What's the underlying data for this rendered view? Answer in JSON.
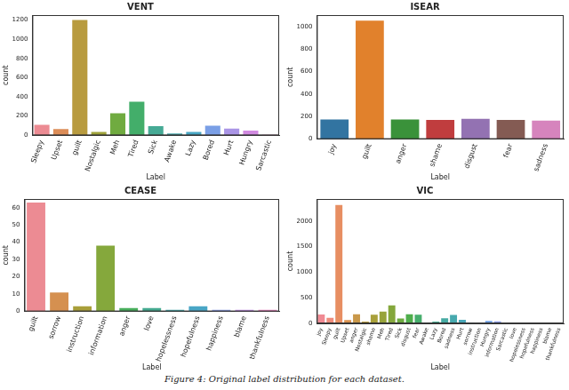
{
  "caption": "Figure 4: Original label distribution for each dataset.",
  "chart_data": [
    {
      "type": "bar",
      "title": "VENT",
      "x_label": "Label",
      "y_label": "count",
      "categories": [
        "Sleepy",
        "Upset",
        "guilt",
        "Nostalgic",
        "Meh",
        "Tired",
        "Sick",
        "Awake",
        "Lazy",
        "Bored",
        "Hurt",
        "Hungry",
        "Sarcastic"
      ],
      "values": [
        110,
        65,
        1200,
        35,
        230,
        350,
        95,
        20,
        35,
        100,
        70,
        50,
        5
      ],
      "colors": [
        "#ec8b93",
        "#dc8d58",
        "#b89b3f",
        "#9fa33a",
        "#70ab40",
        "#43ae6a",
        "#46aa95",
        "#47a8ad",
        "#49a6c4",
        "#7a9fe6",
        "#aa95e6",
        "#d18ae0",
        "#eb85bb"
      ],
      "ylim": [
        0,
        1250
      ],
      "yticks": [
        0,
        200,
        400,
        600,
        800,
        1000,
        1200
      ],
      "grid": false
    },
    {
      "type": "bar",
      "title": "ISEAR",
      "x_label": "Label",
      "y_label": "count",
      "categories": [
        "joy",
        "guilt",
        "anger",
        "shame",
        "disgust",
        "fear",
        "sadness"
      ],
      "values": [
        175,
        1050,
        175,
        170,
        180,
        170,
        165
      ],
      "colors": [
        "#3274a1",
        "#e1812c",
        "#3a923a",
        "#c03d3e",
        "#9372b2",
        "#845b53",
        "#d684bd"
      ],
      "ylim": [
        0,
        1100
      ],
      "yticks": [
        0,
        200,
        400,
        600,
        800,
        1000
      ],
      "grid": false
    },
    {
      "type": "bar",
      "title": "CEASE",
      "x_label": "Label",
      "y_label": "count",
      "categories": [
        "guilt",
        "sorrow",
        "instruction",
        "information",
        "anger",
        "love",
        "hopelessness",
        "hopefulness",
        "happiness",
        "blame",
        "thankfulness"
      ],
      "values": [
        63,
        11,
        3,
        38,
        2,
        2,
        1,
        3,
        1,
        1,
        1
      ],
      "colors": [
        "#ec8b93",
        "#d59050",
        "#a99f3a",
        "#85a83c",
        "#48ae5c",
        "#44aa90",
        "#46a8aa",
        "#49a6c6",
        "#8b9ce6",
        "#c18de3",
        "#ea85c0"
      ],
      "ylim": [
        0,
        65
      ],
      "yticks": [
        0,
        10,
        20,
        30,
        40,
        50,
        60
      ],
      "grid": false
    },
    {
      "type": "bar",
      "title": "VIC",
      "x_label": "Label",
      "y_label": "count",
      "categories": [
        "joy",
        "Sleepy",
        "guilt",
        "Upset",
        "anger",
        "Nostalgic",
        "shame",
        "Meh",
        "Tired",
        "Sick",
        "disgust",
        "fear",
        "Awake",
        "Lazy",
        "Bored",
        "sadness",
        "Hurt",
        "sorrow",
        "instruction",
        "Hungry",
        "information",
        "Sarcastic",
        "love",
        "hopelessness",
        "hopefulness",
        "happiness",
        "blame",
        "thankfulness"
      ],
      "values": [
        175,
        110,
        2313,
        65,
        177,
        35,
        170,
        230,
        350,
        95,
        180,
        170,
        20,
        35,
        100,
        165,
        70,
        11,
        3,
        50,
        38,
        5,
        2,
        1,
        3,
        1,
        1,
        1
      ],
      "colors": [
        "#f08a93",
        "#ee8c7c",
        "#e78e62",
        "#da924f",
        "#c9984a",
        "#b99c41",
        "#a8a03a",
        "#97a33b",
        "#84a73c",
        "#6daa3f",
        "#4fae4c",
        "#46ae6c",
        "#45ad82",
        "#46ac93",
        "#46aaa2",
        "#47a9ae",
        "#48a7b8",
        "#49a6c4",
        "#55a2d6",
        "#6e9fe6",
        "#8b9ce6",
        "#a298e6",
        "#b594e6",
        "#c78fe4",
        "#d68adc",
        "#e486cf",
        "#eb85c0",
        "#ef88ab"
      ],
      "ylim": [
        0,
        2430
      ],
      "yticks": [
        0,
        500,
        1000,
        1500,
        2000
      ],
      "grid": false
    }
  ]
}
